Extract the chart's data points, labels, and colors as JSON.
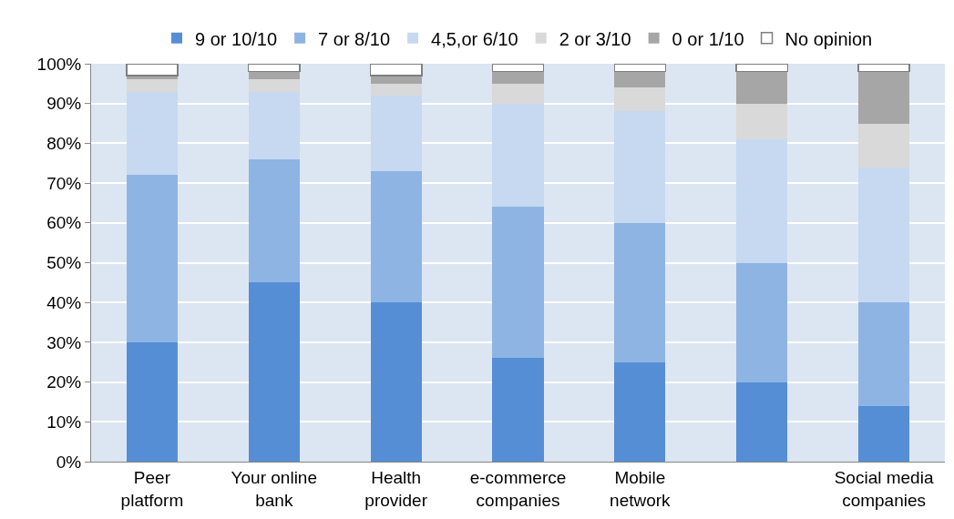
{
  "chart_data": {
    "type": "bar",
    "stacked": true,
    "categories": [
      "Peer platform",
      "Your online bank",
      "Health provider",
      "e-commerce companies",
      "Mobile network",
      null,
      "Social media companies"
    ],
    "series": [
      {
        "name": "9 or 10/10",
        "color": "#558ed5",
        "values": [
          30,
          45,
          40,
          26,
          25,
          20,
          14
        ]
      },
      {
        "name": "7 or 8/10",
        "color": "#8eb4e3",
        "values": [
          42,
          31,
          33,
          38,
          35,
          30,
          26
        ]
      },
      {
        "name": "4,5,or 6/10",
        "color": "#c6d9f1",
        "values": [
          21,
          17,
          19,
          26,
          28,
          31,
          34
        ]
      },
      {
        "name": "2 or 3/10",
        "color": "#d9d9d9",
        "values": [
          3,
          3,
          3,
          5,
          6,
          9,
          11
        ]
      },
      {
        "name": "0 or 1/10",
        "color": "#a6a6a6",
        "values": [
          1,
          2,
          2,
          3,
          4,
          8,
          13
        ]
      },
      {
        "name": "No opinion",
        "color": "#ffffff",
        "values": [
          3,
          2,
          3,
          2,
          2,
          2,
          2
        ]
      }
    ],
    "ylim": [
      0,
      100
    ],
    "yticks": [
      {
        "value": 0,
        "label": "0%"
      },
      {
        "value": 10,
        "label": "10%"
      },
      {
        "value": 20,
        "label": "20%"
      },
      {
        "value": 30,
        "label": "30%"
      },
      {
        "value": 40,
        "label": "40%"
      },
      {
        "value": 50,
        "label": "50%"
      },
      {
        "value": 60,
        "label": "60%"
      },
      {
        "value": 70,
        "label": "70%"
      },
      {
        "value": 80,
        "label": "80%"
      },
      {
        "value": 90,
        "label": "90%"
      },
      {
        "value": 100,
        "label": "100%"
      }
    ],
    "grid": "y",
    "legend": "top"
  }
}
